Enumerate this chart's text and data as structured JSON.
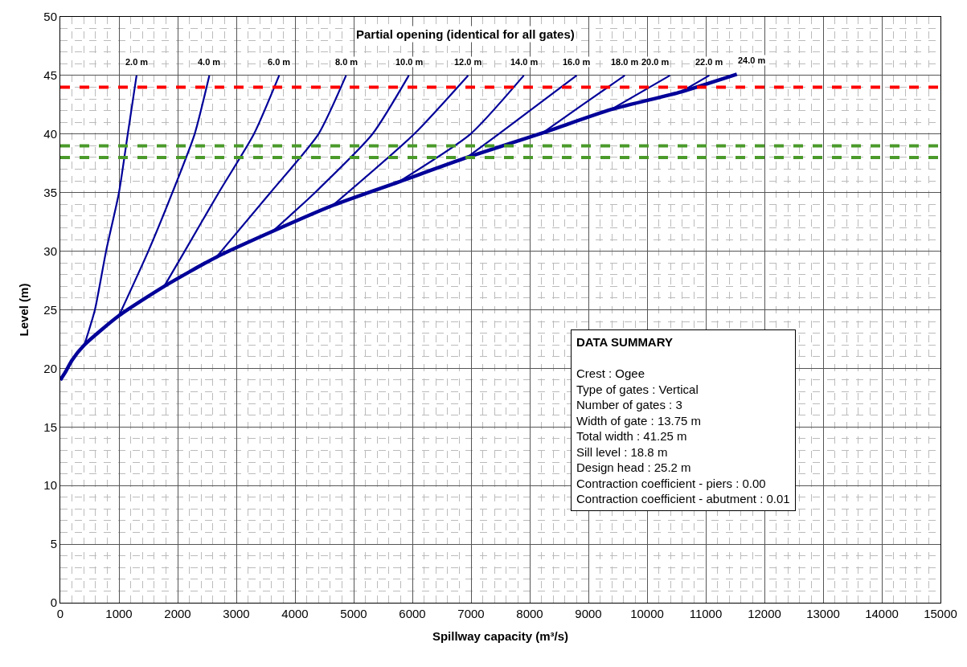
{
  "chart_data": {
    "type": "line",
    "title": "Partial opening (identical for all gates)",
    "xlabel": "Spillway capacity (m³/s)",
    "ylabel": "Level (m)",
    "xlim": [
      0,
      15000
    ],
    "xticks": [
      0,
      1000,
      2000,
      3000,
      4000,
      5000,
      6000,
      7000,
      8000,
      9000,
      10000,
      11000,
      12000,
      13000,
      14000,
      15000
    ],
    "ylim": [
      0,
      50
    ],
    "yticks": [
      0,
      5,
      10,
      15,
      20,
      25,
      30,
      35,
      40,
      45,
      50
    ],
    "grid": true,
    "legend": false,
    "marker": "none",
    "line_style": "solid",
    "series": [
      {
        "name": "2.0 m",
        "color": "#000099",
        "x": [
          410,
          590,
          780,
          1000,
          1150,
          1300
        ],
        "values": [
          22.0,
          25,
          30,
          35,
          40,
          45
        ]
      },
      {
        "name": "4.0 m",
        "color": "#000099",
        "x": [
          1000,
          1500,
          1910,
          2290,
          2540
        ],
        "values": [
          24.5,
          30,
          35,
          40,
          45
        ]
      },
      {
        "name": "6.0 m",
        "color": "#000099",
        "x": [
          1770,
          2120,
          2700,
          3300,
          3730
        ],
        "values": [
          27.0,
          30,
          35,
          40,
          45
        ]
      },
      {
        "name": "8.0 m",
        "color": "#000099",
        "x": [
          2660,
          3580,
          4400,
          4870
        ],
        "values": [
          29.5,
          35,
          40,
          45
        ]
      },
      {
        "name": "10.0 m",
        "color": "#000099",
        "x": [
          3620,
          4340,
          5320,
          5940
        ],
        "values": [
          31.7,
          35,
          40,
          45
        ]
      },
      {
        "name": "12.0 m",
        "color": "#000099",
        "x": [
          4640,
          6030,
          6950
        ],
        "values": [
          33.9,
          40,
          45
        ]
      },
      {
        "name": "14.0 m",
        "color": "#000099",
        "x": [
          5760,
          6990,
          7900
        ],
        "values": [
          35.9,
          40,
          45
        ]
      },
      {
        "name": "16.0 m",
        "color": "#000099",
        "x": [
          6930,
          7470,
          8800
        ],
        "values": [
          38.0,
          40,
          45
        ]
      },
      {
        "name": "18.0 m",
        "color": "#000099",
        "x": [
          8220,
          8900,
          9620
        ],
        "values": [
          40.1,
          42.5,
          45
        ]
      },
      {
        "name": "20.0 m",
        "color": "#000099",
        "x": [
          9390,
          10390
        ],
        "values": [
          42.1,
          45
        ]
      },
      {
        "name": "22.0 m",
        "color": "#000099",
        "x": [
          10580,
          11060
        ],
        "values": [
          43.6,
          45
        ]
      },
      {
        "name": "24.0 m",
        "color": "#000099",
        "x": [
          0,
          100,
          200,
          410,
          1000,
          1770,
          2660,
          3620,
          4640,
          5760,
          6930,
          8220,
          9390,
          10580,
          11530
        ],
        "values": [
          19.0,
          19.8,
          20.7,
          22.0,
          24.5,
          27.0,
          29.5,
          31.7,
          33.9,
          35.9,
          38.0,
          40.1,
          42.1,
          43.6,
          45.1
        ]
      }
    ],
    "ref_lines": [
      {
        "axis": "y",
        "value": 44,
        "color": "#ff0000",
        "line_style": "dashed"
      },
      {
        "axis": "y",
        "value": 39,
        "color": "#4a9a2a",
        "line_style": "dashed"
      },
      {
        "axis": "y",
        "value": 38,
        "color": "#4a9a2a",
        "line_style": "dashed"
      }
    ],
    "annotations": [
      "DATA SUMMARY",
      "Crest : Ogee\nType of gates : Vertical\nNumber of gates : 3\nWidth of gate : 13.75 m\nTotal width : 41.25 m\nSill level : 18.8 m\nDesign head : 25.2 m\nContraction coefficient - piers : 0.00\nContraction coefficient - abutment : 0.01"
    ]
  }
}
